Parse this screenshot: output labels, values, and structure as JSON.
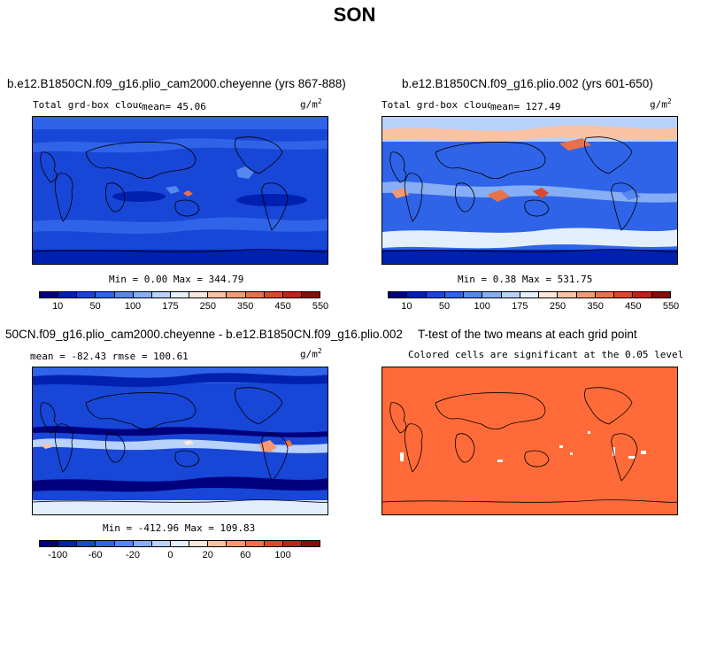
{
  "title": "SON",
  "panel1": {
    "title": "b.e12.B1850CN.f09_g16.plio_cam2000.cheyenne (yrs 867-888)",
    "field": "Total grd-box cloud LWP",
    "mean": "mean=  45.06",
    "units": "g/m",
    "units_exp": "2",
    "minmax": "Min =   0.00 Max = 344.79",
    "labels": [
      "10",
      "50",
      "100",
      "175",
      "250",
      "350",
      "450",
      "550"
    ]
  },
  "panel2": {
    "title": "b.e12.B1850CN.f09_g16.plio.002 (yrs 601-650)",
    "field": "Total grd-box cloud LWP",
    "mean": "mean= 127.49",
    "units": "g/m",
    "units_exp": "2",
    "minmax": "Min =   0.38 Max = 531.75",
    "labels": [
      "10",
      "50",
      "100",
      "175",
      "250",
      "350",
      "450",
      "550"
    ]
  },
  "panel3": {
    "title": "50CN.f09_g16.plio_cam2000.cheyenne - b.e12.B1850CN.f09_g16.plio.002",
    "stats": "mean = -82.43    rmse = 100.61",
    "units": "g/m",
    "units_exp": "2",
    "minmax": "Min = -412.96 Max = 109.83",
    "labels": [
      "-100",
      "-60",
      "-20",
      "0",
      "20",
      "60",
      "100"
    ]
  },
  "panel4": {
    "title": "T-test of the two means at each grid point",
    "subtitle": "Colored cells are significant at the 0.05 level"
  },
  "colors": {
    "abs_scale": [
      "#00007f",
      "#0020b0",
      "#1846d6",
      "#2f64e8",
      "#5587f0",
      "#86aef5",
      "#b8d2fb",
      "#e3effd",
      "#fde7da",
      "#f9c2a3",
      "#f39a73",
      "#e9714a",
      "#d94a2c",
      "#bb2416",
      "#8a0a0a"
    ],
    "diff_scale": [
      "#00007f",
      "#0020b0",
      "#1846d6",
      "#2f64e8",
      "#5587f0",
      "#86aef5",
      "#b8d2fb",
      "#e3effd",
      "#fde7da",
      "#f9c2a3",
      "#f39a73",
      "#e9714a",
      "#d94a2c",
      "#bb2416",
      "#8a0a0a"
    ],
    "ttest": "#ff6b38"
  }
}
